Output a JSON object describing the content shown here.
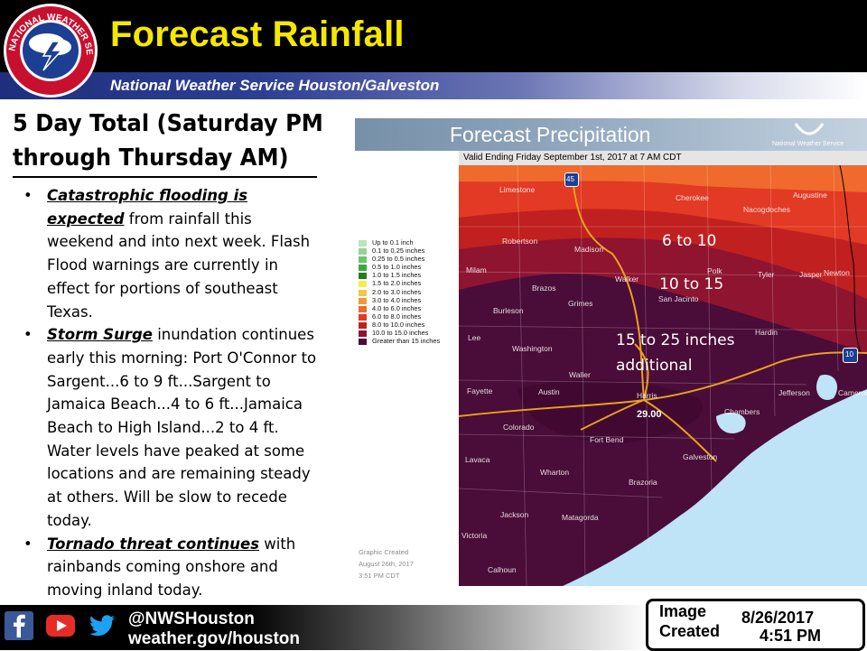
{
  "header": {
    "title": "Forecast Rainfall",
    "subtitle": "National Weather Service Houston/Galveston",
    "logo_text": "NATIONAL WEATHER SERVICE",
    "colors": {
      "title": "#f5e800",
      "bar": "#000000",
      "sub_bar": "#1f2f7e"
    }
  },
  "summary": {
    "heading_line1": "5 Day Total  (Saturday PM",
    "heading_line2": "through Thursday AM)",
    "bullets": [
      {
        "lead": "Catastrophic flooding is expected",
        "text": " from rainfall this weekend and into next week. Flash Flood warnings are currently in effect for portions of southeast Texas."
      },
      {
        "lead": "Storm Surge",
        "text": " inundation continues early this morning: Port O'Connor to Sargent...6 to 9 ft...Sargent to Jamaica Beach...4 to 6 ft...Jamaica Beach to High Island...2 to 4 ft.  Water levels have peaked at some locations and are remaining steady at others.  Will be slow to recede today."
      },
      {
        "lead": "Tornado threat continues",
        "text": " with rainbands coming onshore and moving inland today."
      }
    ]
  },
  "map": {
    "title": "Forecast Precipitation",
    "brand": "National Weather Service",
    "valid": "Valid Ending Friday September 1st, 2017 at 7 AM CDT",
    "legend": [
      {
        "label": "Up to 0.1 inch",
        "color": "#b8e6b8"
      },
      {
        "label": "0.1 to 0.25 inches",
        "color": "#93d593"
      },
      {
        "label": "0.25 to 0.5 inches",
        "color": "#6cc46c"
      },
      {
        "label": "0.5 to 1.0 inches",
        "color": "#3ea83e"
      },
      {
        "label": "1.0 to 1.5 inches",
        "color": "#1f7f1f"
      },
      {
        "label": "1.5 to 2.0 inches",
        "color": "#f2ef4c"
      },
      {
        "label": "2.0 to 3.0 inches",
        "color": "#f2c744"
      },
      {
        "label": "3.0 to 4.0 inches",
        "color": "#f29a3a"
      },
      {
        "label": "4.0 to 6.0 inches",
        "color": "#ef6a2c"
      },
      {
        "label": "6.0 to 8.0 inches",
        "color": "#e23a24"
      },
      {
        "label": "8.0 to 10.0 inches",
        "color": "#c0201f"
      },
      {
        "label": "10.0 to 15.0 inches",
        "color": "#8e1430"
      },
      {
        "label": "Greater than 15 inches",
        "color": "#4a0c38"
      }
    ],
    "zone_labels": [
      "6 to 10",
      "10 to 15",
      "15 to 25 inches",
      "additional"
    ],
    "max_value": "29.00",
    "highway_shields": [
      "45",
      "10"
    ],
    "counties": [
      "Cherokee",
      "Nacogdoches",
      "Limestone",
      "Augustine",
      "Robertson",
      "Madison",
      "Milam",
      "Brazos",
      "Walker",
      "Polk",
      "Tyler",
      "Jasper",
      "Newton",
      "Burleson",
      "Grimes",
      "San Jacinto",
      "Lee",
      "Washington",
      "Hardin",
      "Fayette",
      "Austin",
      "Waller",
      "Harris",
      "Jefferson",
      "Cameron",
      "Chambers",
      "Colorado",
      "Fort Bend",
      "Galveston",
      "Lavaca",
      "Wharton",
      "Brazoria",
      "Jackson",
      "Matagorda",
      "Victoria",
      "Calhoun"
    ],
    "created_lines": [
      "Graphic Created",
      "August 26th, 2017",
      "3:51 PM CDT"
    ]
  },
  "footer": {
    "handle": "@NWSHouston",
    "site": "weather.gov/houston",
    "social": [
      "facebook-icon",
      "youtube-icon",
      "twitter-icon"
    ],
    "image_created_label1": "Image",
    "image_created_label2": "Created",
    "date": "8/26/2017",
    "time": "4:51 PM"
  }
}
